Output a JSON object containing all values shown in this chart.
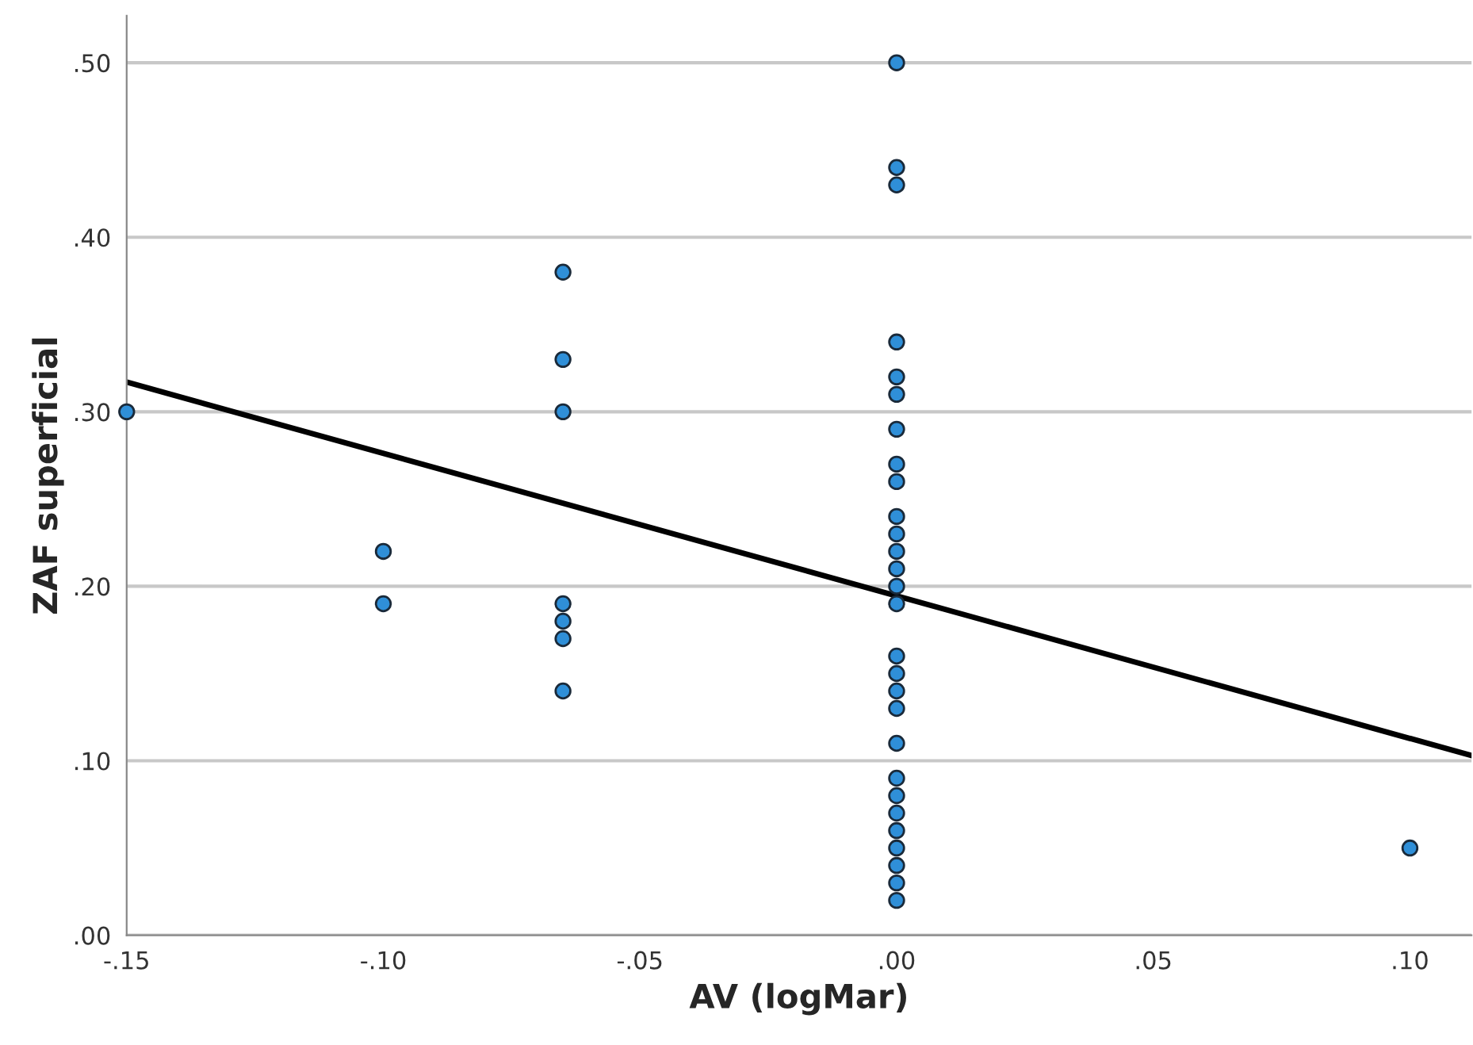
{
  "chart_data": {
    "type": "scatter",
    "xlabel": "AV (logMar)",
    "ylabel": "ZAF superficial",
    "xlim": [
      -0.15,
      0.112
    ],
    "ylim": [
      0,
      0.527
    ],
    "xticks": [
      {
        "value": -0.15,
        "label": "-.15"
      },
      {
        "value": -0.1,
        "label": "-.10"
      },
      {
        "value": -0.05,
        "label": "-.05"
      },
      {
        "value": 0,
        "label": ".00"
      },
      {
        "value": 0.05,
        "label": ".05"
      },
      {
        "value": 0.1,
        "label": ".10"
      }
    ],
    "yticks": [
      {
        "value": 0,
        "label": ".00"
      },
      {
        "value": 0.1,
        "label": ".10"
      },
      {
        "value": 0.2,
        "label": ".20"
      },
      {
        "value": 0.3,
        "label": ".30"
      },
      {
        "value": 0.4,
        "label": ".40"
      },
      {
        "value": 0.5,
        "label": ".50"
      }
    ],
    "grid": "y",
    "series": [
      {
        "marker": "circle",
        "color": "#2f8fd8",
        "x": [
          -0.15,
          -0.1,
          -0.1,
          -0.065,
          -0.065,
          -0.065,
          -0.065,
          -0.065,
          -0.065,
          -0.065,
          0,
          0,
          0,
          0,
          0,
          0,
          0,
          0,
          0,
          0,
          0,
          0,
          0,
          0,
          0,
          0,
          0,
          0,
          0,
          0,
          0,
          0,
          0,
          0,
          0,
          0,
          0,
          0,
          0.1
        ],
        "values": [
          0.3,
          0.22,
          0.19,
          0.38,
          0.33,
          0.3,
          0.19,
          0.18,
          0.17,
          0.14,
          0.5,
          0.44,
          0.43,
          0.34,
          0.32,
          0.31,
          0.29,
          0.27,
          0.26,
          0.24,
          0.23,
          0.22,
          0.21,
          0.2,
          0.19,
          0.16,
          0.15,
          0.14,
          0.13,
          0.11,
          0.09,
          0.08,
          0.07,
          0.06,
          0.05,
          0.04,
          0.03,
          0.02,
          0.05
        ]
      },
      {
        "type": "line",
        "marker": "none",
        "color": "#000000",
        "x": [
          -0.15,
          0.112
        ],
        "values": [
          0.317,
          0.103
        ]
      }
    ]
  }
}
